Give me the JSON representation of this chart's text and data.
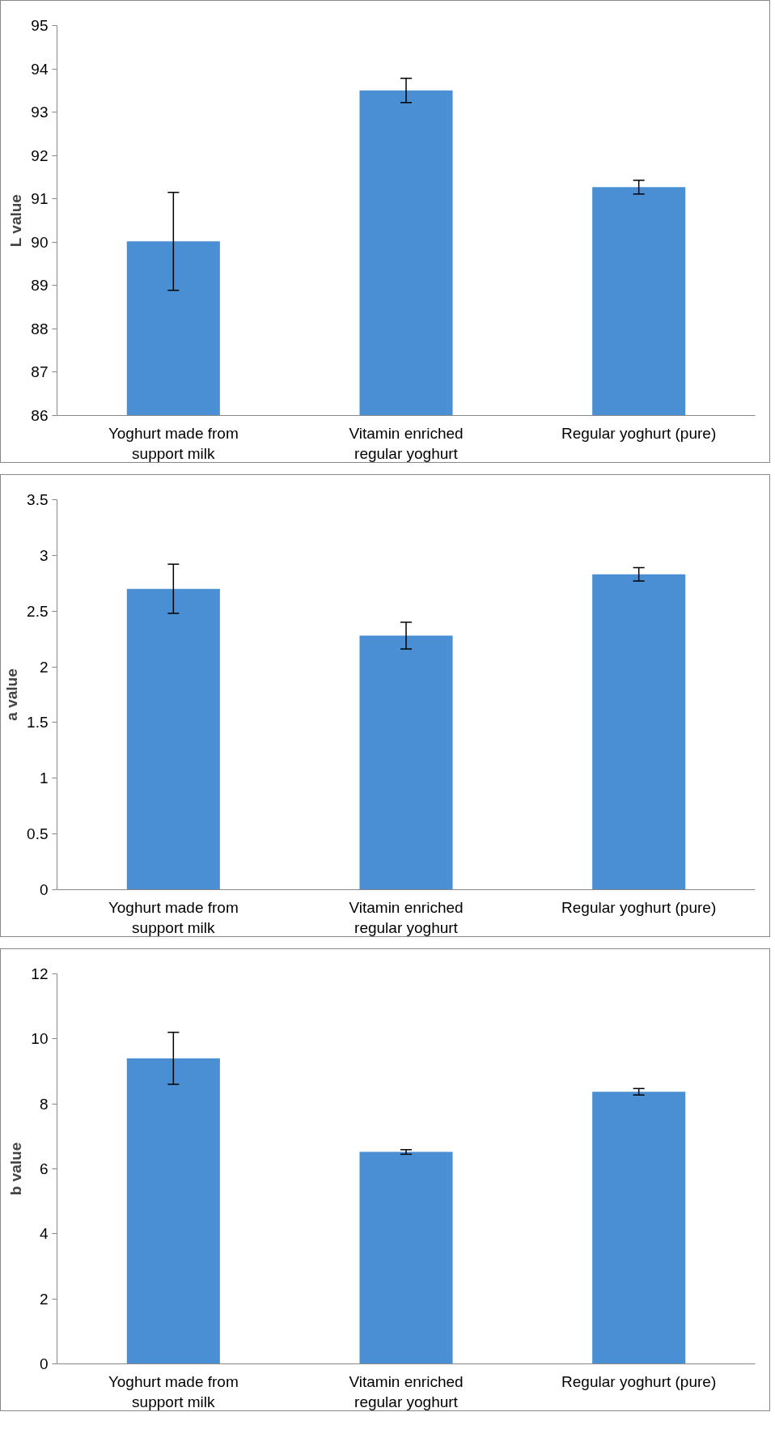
{
  "chart_data": [
    {
      "type": "bar",
      "ylabel": "L value",
      "categories": [
        "Yoghurt made from support milk",
        "Vitamin enriched regular yoghurt",
        "Regular yoghurt (pure)"
      ],
      "values": [
        90.02,
        93.5,
        91.27
      ],
      "errors": [
        1.13,
        0.28,
        0.16
      ],
      "color": "#4a8fd4",
      "ylim": [
        86,
        95
      ],
      "yticks": [
        86,
        87,
        88,
        89,
        90,
        91,
        92,
        93,
        94,
        95
      ]
    },
    {
      "type": "bar",
      "ylabel": "a value",
      "categories": [
        "Yoghurt made from support milk",
        "Vitamin enriched regular yoghurt",
        "Regular yoghurt (pure)"
      ],
      "values": [
        2.7,
        2.28,
        2.83
      ],
      "errors": [
        0.22,
        0.12,
        0.06
      ],
      "color": "#4a8fd4",
      "ylim": [
        0,
        3.5
      ],
      "yticks": [
        0,
        0.5,
        1,
        1.5,
        2,
        2.5,
        3,
        3.5
      ]
    },
    {
      "type": "bar",
      "ylabel": "b value",
      "categories": [
        "Yoghurt made from support milk",
        "Vitamin enriched regular yoghurt",
        "Regular yoghurt (pure)"
      ],
      "values": [
        9.4,
        6.52,
        8.37
      ],
      "errors": [
        0.8,
        0.07,
        0.1
      ],
      "color": "#4a8fd4",
      "ylim": [
        0,
        12
      ],
      "yticks": [
        0,
        2,
        4,
        6,
        8,
        10,
        12
      ]
    }
  ]
}
